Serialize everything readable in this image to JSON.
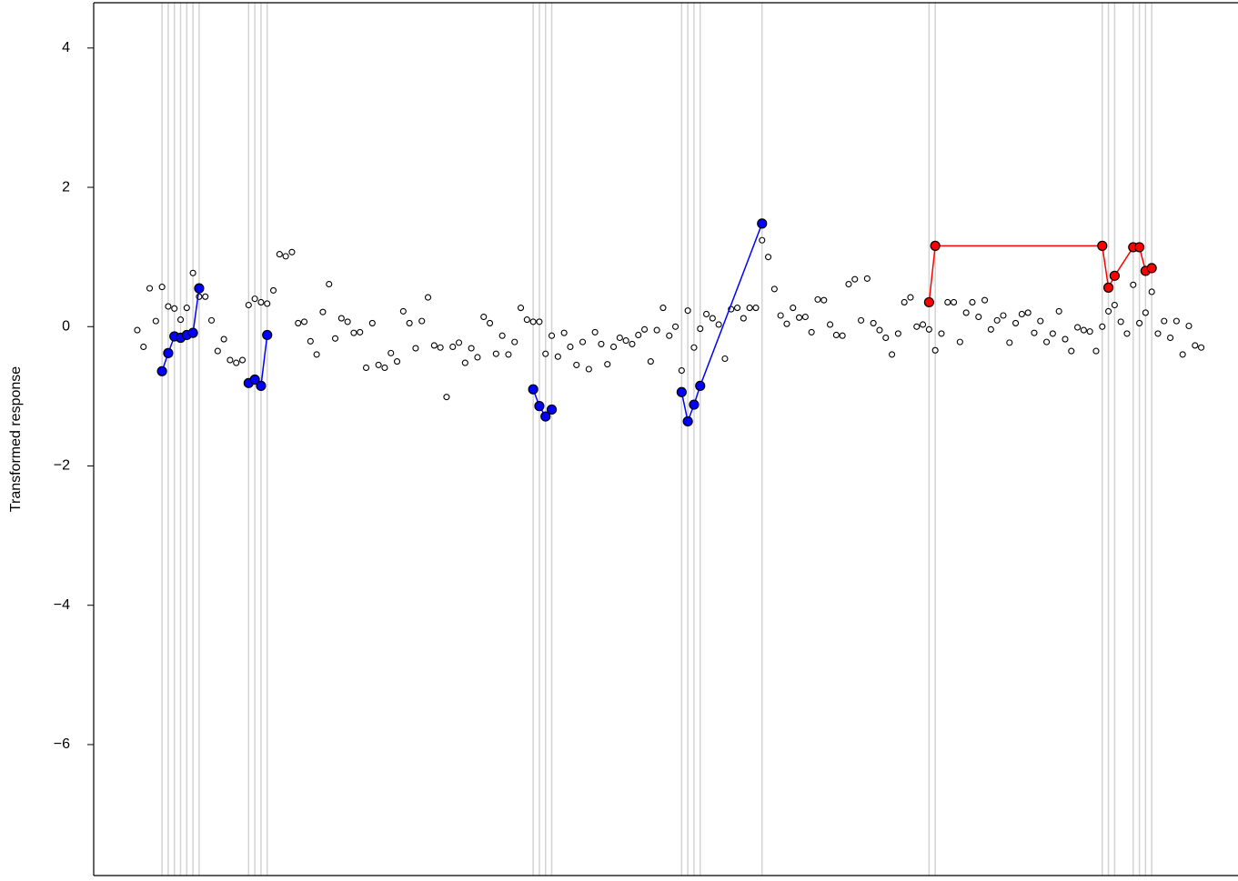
{
  "chart_data": {
    "type": "scatter",
    "ylabel": "Transformed response",
    "xlim": [
      -5.9,
      179.9
    ],
    "ylim": [
      -7.88,
      4.65
    ],
    "yticks": [
      {
        "value": -6,
        "label": "−6"
      },
      {
        "value": -4,
        "label": "−4"
      },
      {
        "value": -2,
        "label": "−2"
      },
      0,
      2,
      4
    ],
    "reference_color": "#d3d3d3",
    "series": [
      {
        "color": "#000000",
        "filled": false,
        "lines": false,
        "reference_lines": false,
        "x": [
          1,
          2,
          3,
          4,
          5,
          6,
          7,
          8,
          9,
          10,
          11,
          12,
          13,
          14,
          15,
          16,
          17,
          18,
          19,
          20,
          21,
          22,
          23,
          24,
          25,
          26,
          27,
          28,
          29,
          30,
          31,
          32,
          33,
          34,
          35,
          36,
          37,
          38,
          39,
          40,
          41,
          42,
          43,
          44,
          45,
          46,
          47,
          48,
          49,
          50,
          51,
          52,
          53,
          54,
          55,
          56,
          57,
          58,
          59,
          60,
          61,
          62,
          63,
          64,
          65,
          66,
          67,
          68,
          69,
          70,
          71,
          72,
          73,
          74,
          75,
          76,
          77,
          78,
          79,
          80,
          81,
          82,
          83,
          84,
          85,
          86,
          87,
          88,
          89,
          90,
          91,
          92,
          93,
          94,
          95,
          96,
          97,
          98,
          99,
          100,
          101,
          102,
          103,
          104,
          105,
          106,
          107,
          108,
          109,
          110,
          111,
          112,
          113,
          114,
          115,
          116,
          117,
          118,
          119,
          120,
          121,
          122,
          123,
          124,
          125,
          126,
          127,
          128,
          129,
          130,
          131,
          132,
          133,
          134,
          135,
          136,
          137,
          138,
          139,
          140,
          141,
          142,
          143,
          144,
          145,
          146,
          147,
          148,
          149,
          150,
          151,
          152,
          153,
          154,
          155,
          156,
          157,
          158,
          159,
          160,
          161,
          162,
          163,
          164,
          165,
          166,
          167,
          168,
          169,
          170,
          171,
          172,
          173
        ],
        "values": [
          -0.05,
          -0.29,
          0.55,
          0.08,
          0.57,
          0.29,
          0.26,
          0.1,
          0.27,
          0.77,
          0.43,
          0.43,
          0.09,
          -0.35,
          -0.18,
          -0.48,
          -0.52,
          -0.48,
          0.31,
          0.4,
          0.35,
          0.33,
          0.52,
          1.04,
          1.01,
          1.07,
          0.05,
          0.07,
          -0.21,
          -0.4,
          0.21,
          0.61,
          -0.17,
          0.12,
          0.07,
          -0.09,
          -0.08,
          -0.59,
          0.05,
          -0.55,
          -0.59,
          -0.38,
          -0.5,
          0.22,
          0.05,
          -0.31,
          0.08,
          0.42,
          -0.27,
          -0.3,
          -1.01,
          -0.29,
          -0.23,
          -0.52,
          -0.31,
          -0.44,
          0.14,
          0.05,
          -0.39,
          -0.13,
          -0.4,
          -0.22,
          0.27,
          0.1,
          0.07,
          0.07,
          -0.39,
          -0.13,
          -0.43,
          -0.09,
          -0.29,
          -0.55,
          -0.22,
          -0.61,
          -0.08,
          -0.25,
          -0.54,
          -0.29,
          -0.16,
          -0.2,
          -0.25,
          -0.12,
          -0.04,
          -0.5,
          -0.05,
          0.27,
          -0.13,
          0.0,
          -0.63,
          0.23,
          -0.3,
          -0.03,
          0.18,
          0.12,
          0.03,
          -0.46,
          0.25,
          0.27,
          0.12,
          0.27,
          0.27,
          1.24,
          1.0,
          0.54,
          0.16,
          0.04,
          0.27,
          0.13,
          0.14,
          -0.08,
          0.39,
          0.38,
          0.03,
          -0.12,
          -0.13,
          0.61,
          0.68,
          0.09,
          0.69,
          0.05,
          -0.05,
          -0.16,
          -0.4,
          -0.1,
          0.35,
          0.42,
          0.0,
          0.03,
          -0.04,
          -0.34,
          -0.1,
          0.35,
          0.35,
          -0.22,
          0.2,
          0.35,
          0.14,
          0.38,
          -0.04,
          0.09,
          0.16,
          -0.23,
          0.05,
          0.18,
          0.2,
          -0.09,
          0.08,
          -0.22,
          -0.1,
          0.22,
          -0.18,
          -0.35,
          -0.01,
          -0.05,
          -0.07,
          -0.35,
          0.0,
          0.22,
          0.31,
          0.07,
          -0.1,
          0.6,
          0.05,
          0.2,
          0.5,
          -0.1,
          0.08,
          -0.16,
          0.08,
          -0.4,
          0.01,
          -0.27,
          -0.3
        ]
      },
      {
        "color": "#0000ff",
        "filled": true,
        "lines": true,
        "reference_lines": true,
        "x": [
          5,
          6,
          7,
          8,
          9,
          10,
          11,
          null,
          19,
          20,
          21,
          22,
          null,
          65,
          66,
          67,
          68,
          null,
          89,
          90,
          91,
          92,
          102
        ],
        "values": [
          -0.64,
          -0.38,
          -0.14,
          -0.16,
          -0.12,
          -0.09,
          0.55,
          null,
          -0.81,
          -0.76,
          -0.85,
          -0.12,
          null,
          -0.9,
          -1.14,
          -1.29,
          -1.19,
          null,
          -0.94,
          -1.36,
          -1.12,
          -0.85,
          1.48
        ]
      },
      {
        "color": "#ff0000",
        "filled": true,
        "lines": true,
        "reference_lines": true,
        "x": [
          129,
          130,
          157,
          158,
          159,
          162,
          163,
          164,
          165
        ],
        "values": [
          0.35,
          1.16,
          1.16,
          0.56,
          0.73,
          1.14,
          1.14,
          0.8,
          0.84
        ]
      }
    ]
  }
}
